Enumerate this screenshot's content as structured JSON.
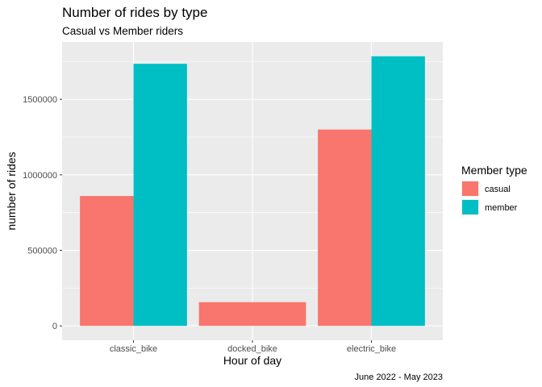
{
  "chart_data": {
    "type": "bar",
    "title": "Number of rides by type",
    "subtitle": "Casual vs Member riders",
    "xlabel": "Hour of day",
    "ylabel": "number of rides",
    "caption": "June 2022 - May 2023",
    "categories": [
      "classic_bike",
      "docked_bike",
      "electric_bike"
    ],
    "series": [
      {
        "name": "casual",
        "values": [
          860000,
          157000,
          1300000
        ],
        "color": "#F8766D"
      },
      {
        "name": "member",
        "values": [
          1735000,
          null,
          1785000
        ],
        "color": "#00BFC4"
      }
    ],
    "ylim": [
      -95000,
      1880000
    ],
    "yticks": [
      0,
      500000,
      1000000,
      1500000
    ],
    "ytick_labels": [
      "0",
      "500000",
      "1000000",
      "1500000"
    ],
    "legend": {
      "title": "Member type",
      "position": "right"
    },
    "grid": true
  }
}
